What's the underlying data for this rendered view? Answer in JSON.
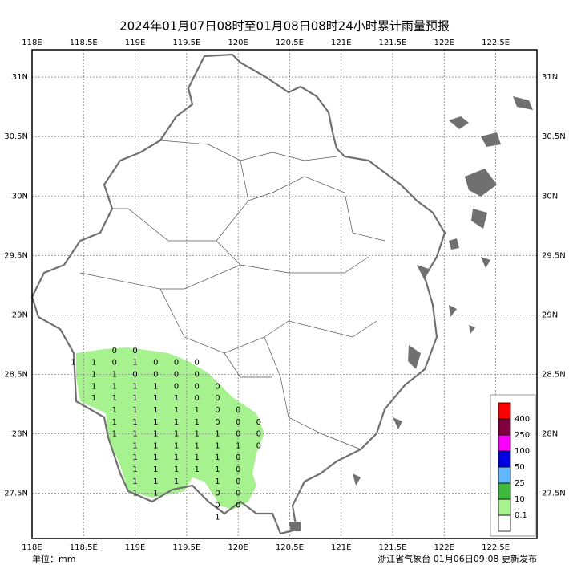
{
  "map": {
    "title": "2024年01月07日08时至01月08日08时24小时累计雨量预报",
    "unit": "单位：mm",
    "issuer": "浙江省气象台 01月06日09:08 更新发布",
    "lonlim": [
      118,
      122.9
    ],
    "latlim": [
      27.12,
      31.23
    ],
    "lonticks": [
      {
        "value": 118,
        "label": "118E"
      },
      {
        "value": 118.5,
        "label": "118.5E"
      },
      {
        "value": 119,
        "label": "119E"
      },
      {
        "value": 119.5,
        "label": "119.5E"
      },
      {
        "value": 120,
        "label": "120E"
      },
      {
        "value": 120.5,
        "label": "120.5E"
      },
      {
        "value": 121,
        "label": "121E"
      },
      {
        "value": 121.5,
        "label": "121.5E"
      },
      {
        "value": 122,
        "label": "122E"
      },
      {
        "value": 122.5,
        "label": "122.5E"
      }
    ],
    "latticks": [
      {
        "value": 31,
        "label": "31N"
      },
      {
        "value": 30.5,
        "label": "30.5N"
      },
      {
        "value": 30,
        "label": "30N"
      },
      {
        "value": 29.5,
        "label": "29.5N"
      },
      {
        "value": 29,
        "label": "29N"
      },
      {
        "value": 28.5,
        "label": "28.5N"
      },
      {
        "value": 28,
        "label": "28N"
      },
      {
        "value": 27.5,
        "label": "27.5N"
      }
    ],
    "legend": {
      "colors": [
        "#ffffff",
        "#a6f28f",
        "#3dba3d",
        "#61b8ff",
        "#0000e1",
        "#fa00fa",
        "#800040",
        "#ff0000"
      ],
      "levels": [
        0.1,
        10,
        25,
        50,
        100,
        250,
        400
      ]
    },
    "points": [
      {
        "lon": 118.8,
        "lat": 28.7,
        "value": 0
      },
      {
        "lon": 119.0,
        "lat": 28.7,
        "value": 0
      },
      {
        "lon": 118.4,
        "lat": 28.6,
        "value": 1
      },
      {
        "lon": 118.6,
        "lat": 28.6,
        "value": 1
      },
      {
        "lon": 118.8,
        "lat": 28.6,
        "value": 0
      },
      {
        "lon": 119.0,
        "lat": 28.6,
        "value": 1
      },
      {
        "lon": 119.2,
        "lat": 28.6,
        "value": 0
      },
      {
        "lon": 119.4,
        "lat": 28.6,
        "value": 0
      },
      {
        "lon": 119.6,
        "lat": 28.6,
        "value": 0
      },
      {
        "lon": 118.6,
        "lat": 28.5,
        "value": 1
      },
      {
        "lon": 118.8,
        "lat": 28.5,
        "value": 1
      },
      {
        "lon": 119.0,
        "lat": 28.5,
        "value": 0
      },
      {
        "lon": 119.2,
        "lat": 28.5,
        "value": 0
      },
      {
        "lon": 119.4,
        "lat": 28.5,
        "value": 0
      },
      {
        "lon": 119.6,
        "lat": 28.5,
        "value": 0
      },
      {
        "lon": 118.6,
        "lat": 28.4,
        "value": 1
      },
      {
        "lon": 118.8,
        "lat": 28.4,
        "value": 1
      },
      {
        "lon": 119.0,
        "lat": 28.4,
        "value": 1
      },
      {
        "lon": 119.2,
        "lat": 28.4,
        "value": 1
      },
      {
        "lon": 119.4,
        "lat": 28.4,
        "value": 0
      },
      {
        "lon": 119.6,
        "lat": 28.4,
        "value": 0
      },
      {
        "lon": 119.8,
        "lat": 28.4,
        "value": 0
      },
      {
        "lon": 118.6,
        "lat": 28.3,
        "value": 1
      },
      {
        "lon": 118.8,
        "lat": 28.3,
        "value": 1
      },
      {
        "lon": 119.0,
        "lat": 28.3,
        "value": 1
      },
      {
        "lon": 119.2,
        "lat": 28.3,
        "value": 1
      },
      {
        "lon": 119.4,
        "lat": 28.3,
        "value": 1
      },
      {
        "lon": 119.6,
        "lat": 28.3,
        "value": 0
      },
      {
        "lon": 119.8,
        "lat": 28.3,
        "value": 0
      },
      {
        "lon": 118.8,
        "lat": 28.2,
        "value": 1
      },
      {
        "lon": 119.0,
        "lat": 28.2,
        "value": 1
      },
      {
        "lon": 119.2,
        "lat": 28.2,
        "value": 1
      },
      {
        "lon": 119.4,
        "lat": 28.2,
        "value": 1
      },
      {
        "lon": 119.6,
        "lat": 28.2,
        "value": 1
      },
      {
        "lon": 119.8,
        "lat": 28.2,
        "value": 0
      },
      {
        "lon": 120.0,
        "lat": 28.2,
        "value": 0
      },
      {
        "lon": 118.8,
        "lat": 28.1,
        "value": 1
      },
      {
        "lon": 119.0,
        "lat": 28.1,
        "value": 1
      },
      {
        "lon": 119.2,
        "lat": 28.1,
        "value": 1
      },
      {
        "lon": 119.4,
        "lat": 28.1,
        "value": 1
      },
      {
        "lon": 119.6,
        "lat": 28.1,
        "value": 1
      },
      {
        "lon": 119.8,
        "lat": 28.1,
        "value": 0
      },
      {
        "lon": 120.0,
        "lat": 28.1,
        "value": 0
      },
      {
        "lon": 120.2,
        "lat": 28.1,
        "value": 0
      },
      {
        "lon": 118.8,
        "lat": 28.0,
        "value": 1
      },
      {
        "lon": 119.0,
        "lat": 28.0,
        "value": 1
      },
      {
        "lon": 119.2,
        "lat": 28.0,
        "value": 1
      },
      {
        "lon": 119.4,
        "lat": 28.0,
        "value": 1
      },
      {
        "lon": 119.6,
        "lat": 28.0,
        "value": 1
      },
      {
        "lon": 119.8,
        "lat": 28.0,
        "value": 1
      },
      {
        "lon": 120.0,
        "lat": 28.0,
        "value": 0
      },
      {
        "lon": 120.2,
        "lat": 28.0,
        "value": 0
      },
      {
        "lon": 119.0,
        "lat": 27.9,
        "value": 1
      },
      {
        "lon": 119.2,
        "lat": 27.9,
        "value": 1
      },
      {
        "lon": 119.4,
        "lat": 27.9,
        "value": 1
      },
      {
        "lon": 119.6,
        "lat": 27.9,
        "value": 1
      },
      {
        "lon": 119.8,
        "lat": 27.9,
        "value": 1
      },
      {
        "lon": 120.0,
        "lat": 27.9,
        "value": 1
      },
      {
        "lon": 120.2,
        "lat": 27.9,
        "value": 0
      },
      {
        "lon": 119.0,
        "lat": 27.8,
        "value": 1
      },
      {
        "lon": 119.2,
        "lat": 27.8,
        "value": 1
      },
      {
        "lon": 119.4,
        "lat": 27.8,
        "value": 1
      },
      {
        "lon": 119.6,
        "lat": 27.8,
        "value": 1
      },
      {
        "lon": 119.8,
        "lat": 27.8,
        "value": 1
      },
      {
        "lon": 120.0,
        "lat": 27.8,
        "value": 0
      },
      {
        "lon": 119.0,
        "lat": 27.7,
        "value": 1
      },
      {
        "lon": 119.2,
        "lat": 27.7,
        "value": 1
      },
      {
        "lon": 119.4,
        "lat": 27.7,
        "value": 1
      },
      {
        "lon": 119.6,
        "lat": 27.7,
        "value": 1
      },
      {
        "lon": 119.8,
        "lat": 27.7,
        "value": 1
      },
      {
        "lon": 120.0,
        "lat": 27.7,
        "value": 0
      },
      {
        "lon": 119.0,
        "lat": 27.6,
        "value": 1
      },
      {
        "lon": 119.2,
        "lat": 27.6,
        "value": 1
      },
      {
        "lon": 119.4,
        "lat": 27.6,
        "value": 1
      },
      {
        "lon": 119.8,
        "lat": 27.6,
        "value": 1
      },
      {
        "lon": 120.0,
        "lat": 27.6,
        "value": 0
      },
      {
        "lon": 119.0,
        "lat": 27.5,
        "value": 1
      },
      {
        "lon": 119.2,
        "lat": 27.5,
        "value": 1
      },
      {
        "lon": 119.8,
        "lat": 27.5,
        "value": 0
      },
      {
        "lon": 120.0,
        "lat": 27.5,
        "value": 0
      },
      {
        "lon": 119.8,
        "lat": 27.4,
        "value": 0
      },
      {
        "lon": 120.0,
        "lat": 27.4,
        "value": 0
      },
      {
        "lon": 119.8,
        "lat": 27.3,
        "value": 1
      }
    ]
  }
}
